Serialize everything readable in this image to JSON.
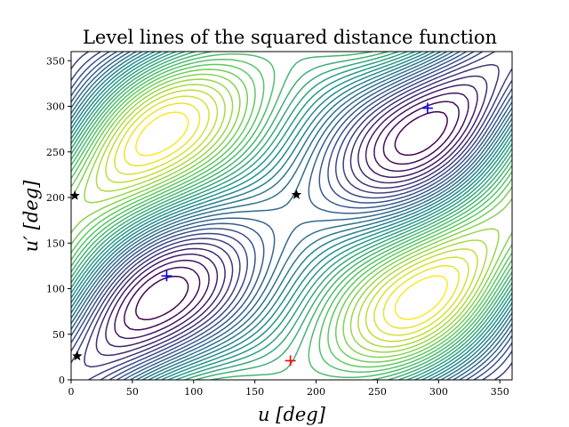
{
  "chart_data": {
    "type": "contour",
    "title": "Level lines of the squared distance function",
    "xlabel": "u [deg]",
    "ylabel": "u′ [deg]",
    "xlim": [
      0,
      360
    ],
    "ylim": [
      0,
      360
    ],
    "xticks": [
      0,
      50,
      100,
      150,
      200,
      250,
      300,
      350
    ],
    "yticks": [
      0,
      50,
      100,
      150,
      200,
      250,
      300,
      350
    ],
    "colormap": "viridis",
    "contour_colors": [
      "#440154",
      "#3b528b",
      "#21918c",
      "#5ec962",
      "#fde725"
    ],
    "markers": [
      {
        "name": "minima",
        "symbol": "+",
        "color": "#0000ff",
        "points": [
          [
            78,
            114
          ],
          [
            291,
            298
          ]
        ]
      },
      {
        "name": "global-minimum",
        "symbol": "+",
        "color": "#ff0000",
        "points": [
          [
            179,
            21
          ]
        ]
      },
      {
        "name": "saddles",
        "symbol": "star",
        "color": "#000000",
        "points": [
          [
            3,
            202
          ],
          [
            184,
            203
          ],
          [
            5,
            26
          ]
        ]
      }
    ],
    "grid": false,
    "legend": "none"
  }
}
